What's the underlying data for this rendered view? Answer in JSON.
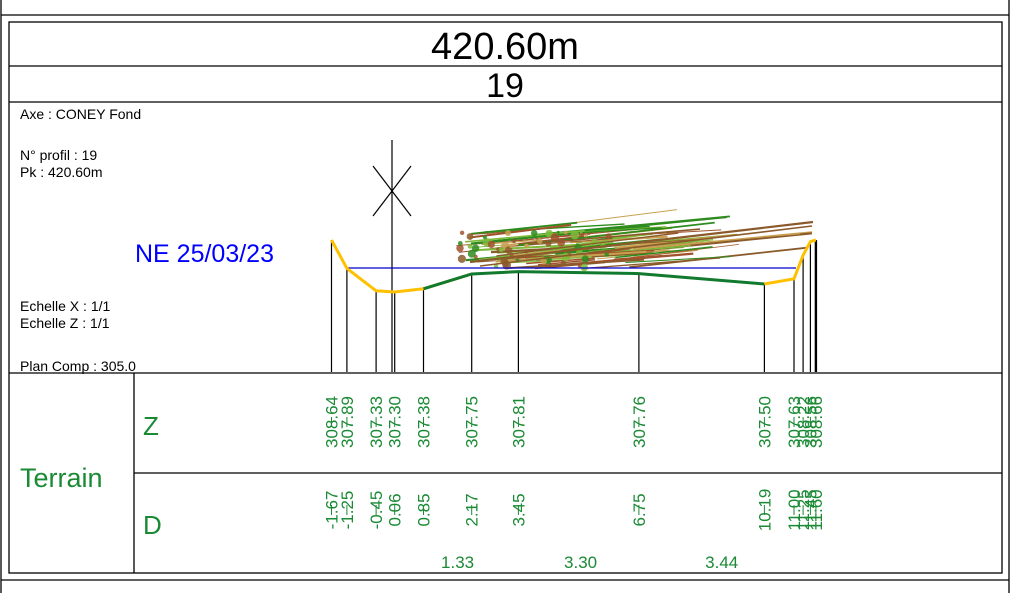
{
  "header": {
    "distance": "420.60m",
    "profile_number": "19"
  },
  "info": {
    "axis": "Axe : CONEY Fond",
    "profile_no": "N° profil : 19",
    "pk": "Pk : 420.60m",
    "water_label": "NE 25/03/23",
    "scale_x": "Echelle X : 1/1",
    "scale_z": "Echelle Z : 1/1",
    "plan_comp": "Plan Comp : 305.0"
  },
  "table": {
    "group_label": "Terrain",
    "row_z_label": "Z",
    "row_d_label": "D"
  },
  "colors": {
    "frame": "#000000",
    "water_line": "#0000cc",
    "water_text": "#0000ff",
    "bank_yellow": "#ffc000",
    "bed_green": "#117a2e",
    "label_green": "#1a8a34",
    "vegetation": [
      "#8b5a2b",
      "#2e8b1e",
      "#7cba3a",
      "#a0522d",
      "#c8a050"
    ]
  },
  "chart_data": {
    "type": "cross-section",
    "plan_comp": 305.0,
    "water_level": {
      "label": "NE 25/03/23"
    },
    "points": [
      {
        "d": "-1.67",
        "z": "308.64"
      },
      {
        "d": "-1.25",
        "z": "307.89"
      },
      {
        "d": "-0.45",
        "z": "307.33"
      },
      {
        "d": "0.06",
        "z": "307.30"
      },
      {
        "d": "0.85",
        "z": "307.38"
      },
      {
        "d": "2.17",
        "z": "307.75"
      },
      {
        "d": "3.45",
        "z": "307.81"
      },
      {
        "d": "6.75",
        "z": "307.76"
      },
      {
        "d": "10.19",
        "z": "307.50"
      },
      {
        "d": "11.00",
        "z": "307.63"
      },
      {
        "d": "11.25",
        "z": "308.22"
      },
      {
        "d": "11.45",
        "z": "308.56"
      },
      {
        "d": "11.60",
        "z": "308.66"
      }
    ],
    "partial_distances": [
      "1.33",
      "3.30",
      "3.44"
    ]
  }
}
